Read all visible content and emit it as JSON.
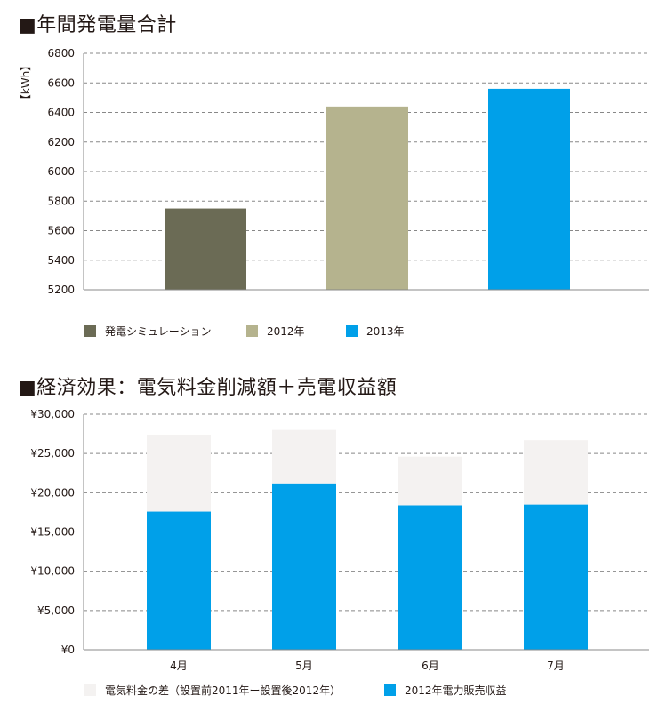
{
  "chart_data": [
    {
      "type": "bar",
      "title": "■年間発電量合計",
      "ylabel": "【kWh】",
      "ylim": [
        5200,
        6800
      ],
      "yticks": [
        5200,
        5400,
        5600,
        5800,
        6000,
        6200,
        6400,
        6600,
        6800
      ],
      "grid": true,
      "legend_position": "bottom",
      "series": [
        {
          "name": "発電シミュレーション",
          "value": 5750,
          "color": "#6b6b55"
        },
        {
          "name": "2012年",
          "value": 6440,
          "color": "#b5b38e"
        },
        {
          "name": "2013年",
          "value": 6560,
          "color": "#00a0e9"
        }
      ]
    },
    {
      "type": "bar",
      "stacked": true,
      "title": "■経済効果：電気料金削減額＋売電収益額",
      "ylim": [
        0,
        30000
      ],
      "yticks": [
        "¥0",
        "¥5,000",
        "¥10,000",
        "¥15,000",
        "¥20,000",
        "¥25,000",
        "¥30,000"
      ],
      "grid": true,
      "legend_position": "bottom",
      "categories": [
        "4月",
        "5月",
        "6月",
        "7月"
      ],
      "series": [
        {
          "name": "2012年電力販売収益",
          "values": [
            17600,
            21200,
            18400,
            18500
          ],
          "color": "#00a0e9"
        },
        {
          "name": "電気料金の差（設置前2011年ー設置後2012年）",
          "values": [
            9800,
            6800,
            6200,
            8200
          ],
          "color": "#f4f2f1"
        }
      ]
    }
  ]
}
